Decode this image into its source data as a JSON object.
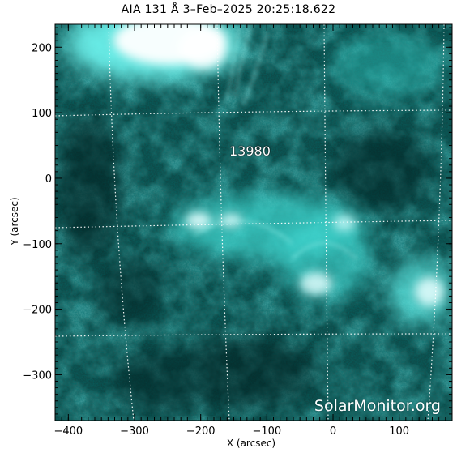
{
  "title": "AIA 131 Å  3–Feb–2025 20:25:18.622",
  "xlabel": "X (arcsec)",
  "ylabel": "Y (arcsec)",
  "region_label": "13980",
  "watermark": "SolarMonitor.org",
  "colors": {
    "background": "#ffffff",
    "image_base": "#0f4a48",
    "bright": "#e8ffff",
    "accent": "#00cccc",
    "grid": "#ffffff"
  },
  "axes": {
    "x_range": [
      -420,
      180
    ],
    "y_range": [
      -370,
      235
    ],
    "x_ticks": [
      {
        "value": -400,
        "label": "−400"
      },
      {
        "value": -300,
        "label": "−300"
      },
      {
        "value": -200,
        "label": "−200"
      },
      {
        "value": -100,
        "label": "−100"
      },
      {
        "value": 0,
        "label": "0"
      },
      {
        "value": 100,
        "label": "100"
      }
    ],
    "y_ticks": [
      {
        "value": 200,
        "label": "200"
      },
      {
        "value": 100,
        "label": "100"
      },
      {
        "value": 0,
        "label": "0"
      },
      {
        "value": -100,
        "label": "−100"
      },
      {
        "value": -200,
        "label": "−200"
      },
      {
        "value": -300,
        "label": "−300"
      }
    ]
  }
}
